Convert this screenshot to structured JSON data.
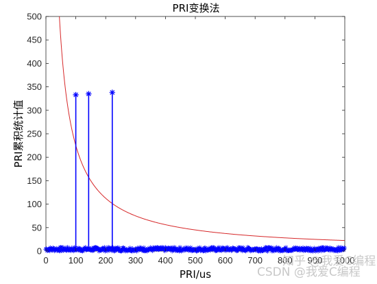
{
  "chart_data": {
    "type": "line",
    "title": "PRI变换法",
    "xlabel": "PRI/us",
    "ylabel": "PRI累积统计值",
    "xlim": [
      0,
      1000
    ],
    "ylim": [
      0,
      500
    ],
    "xticks": [
      0,
      100,
      200,
      300,
      400,
      500,
      600,
      700,
      800,
      900,
      1000
    ],
    "yticks": [
      0,
      50,
      100,
      150,
      200,
      250,
      300,
      350,
      400,
      450,
      500
    ],
    "grid": false,
    "series": [
      {
        "kind": "stem",
        "color": "#0000ff",
        "marker": "*",
        "noise_band": [
          0,
          8
        ],
        "peaks": [
          {
            "x": 100,
            "y": 333
          },
          {
            "x": 143,
            "y": 335
          },
          {
            "x": 222,
            "y": 338
          }
        ]
      },
      {
        "kind": "threshold-line",
        "color": "#d62728",
        "formula": "y = 22500 / x",
        "x_start": 45,
        "x_end": 1000
      }
    ]
  },
  "watermark": "知乎 @我爱C编程",
  "watermark2": "CSDN @我爱C编程"
}
